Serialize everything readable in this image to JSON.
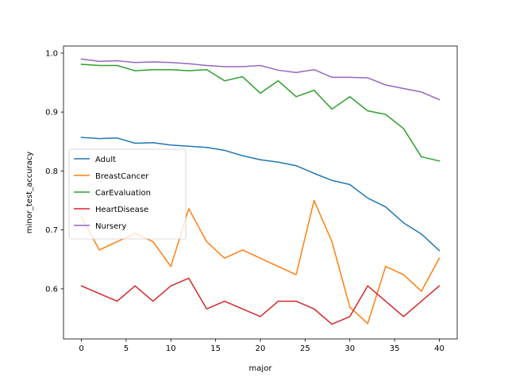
{
  "chart_data": {
    "type": "line",
    "xlabel": "major",
    "ylabel": "minor_test_accuracy",
    "xlim": [
      -2,
      42
    ],
    "ylim": [
      0.515,
      1.012
    ],
    "xticks": [
      0,
      5,
      10,
      15,
      20,
      25,
      30,
      35,
      40
    ],
    "xtick_labels": [
      "0",
      "5",
      "10",
      "15",
      "20",
      "25",
      "30",
      "35",
      "40"
    ],
    "yticks": [
      0.6,
      0.7,
      0.8,
      0.9,
      1.0
    ],
    "ytick_labels": [
      "0.6",
      "0.7",
      "0.8",
      "0.9",
      "1.0"
    ],
    "grid": false,
    "legend_position": "center-left",
    "x": [
      0,
      2,
      4,
      6,
      8,
      10,
      12,
      14,
      16,
      18,
      20,
      22,
      24,
      26,
      28,
      30,
      32,
      34,
      36,
      38,
      40
    ],
    "series": [
      {
        "name": "Adult",
        "color": "#1f77b4",
        "values": [
          0.857,
          0.855,
          0.856,
          0.847,
          0.848,
          0.844,
          0.842,
          0.84,
          0.835,
          0.826,
          0.819,
          0.815,
          0.809,
          0.796,
          0.784,
          0.777,
          0.754,
          0.739,
          0.712,
          0.693,
          0.665
        ]
      },
      {
        "name": "BreastCancer",
        "color": "#ff7f0e",
        "values": [
          0.722,
          0.666,
          0.68,
          0.694,
          0.68,
          0.638,
          0.736,
          0.68,
          0.652,
          0.666,
          0.652,
          0.638,
          0.624,
          0.75,
          0.68,
          0.569,
          0.541,
          0.638,
          0.624,
          0.596,
          0.652
        ]
      },
      {
        "name": "CarEvaluation",
        "color": "#2ca02c",
        "values": [
          0.981,
          0.979,
          0.979,
          0.97,
          0.972,
          0.972,
          0.97,
          0.972,
          0.953,
          0.96,
          0.932,
          0.953,
          0.926,
          0.937,
          0.905,
          0.926,
          0.902,
          0.896,
          0.872,
          0.824,
          0.817
        ]
      },
      {
        "name": "HeartDisease",
        "color": "#d62728",
        "values": [
          0.605,
          0.592,
          0.579,
          0.605,
          0.579,
          0.605,
          0.618,
          0.566,
          0.579,
          0.566,
          0.553,
          0.579,
          0.579,
          0.566,
          0.54,
          0.553,
          0.605,
          0.579,
          0.553,
          0.579,
          0.605
        ]
      },
      {
        "name": "Nursery",
        "color": "#9467bd",
        "values": [
          0.99,
          0.986,
          0.987,
          0.984,
          0.985,
          0.984,
          0.982,
          0.979,
          0.977,
          0.977,
          0.979,
          0.971,
          0.967,
          0.972,
          0.959,
          0.959,
          0.958,
          0.946,
          0.94,
          0.934,
          0.921
        ]
      }
    ]
  }
}
